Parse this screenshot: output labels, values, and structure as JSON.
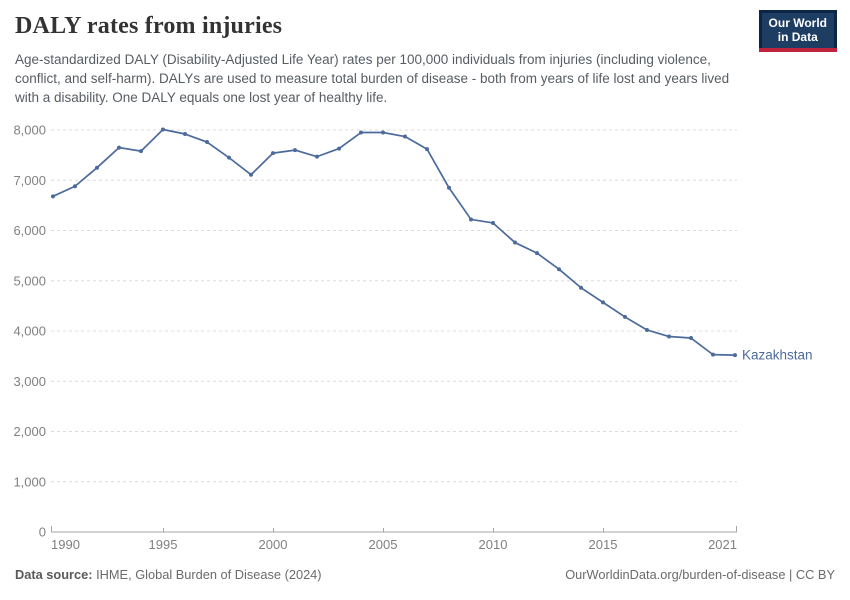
{
  "header": {
    "title": "DALY rates from injuries",
    "subtitle": "Age-standardized DALY (Disability-Adjusted Life Year) rates per 100,000 individuals from injuries (including violence, conflict, and self-harm). DALYs are used to measure total burden of disease - both from years of life lost and years lived with a disability. One DALY equals one lost year of healthy life.",
    "logo": {
      "line1": "Our World",
      "line2": "in Data"
    }
  },
  "chart_data": {
    "type": "line",
    "title": "DALY rates from injuries",
    "x": [
      1990,
      1991,
      1992,
      1993,
      1994,
      1995,
      1996,
      1997,
      1998,
      1999,
      2000,
      2001,
      2002,
      2003,
      2004,
      2005,
      2006,
      2007,
      2008,
      2009,
      2010,
      2011,
      2012,
      2013,
      2014,
      2015,
      2016,
      2017,
      2018,
      2019,
      2020,
      2021
    ],
    "series": [
      {
        "name": "Kazakhstan",
        "color": "#4c6a9c",
        "values": [
          6680,
          6880,
          7250,
          7650,
          7580,
          8010,
          7920,
          7760,
          7450,
          7110,
          7540,
          7600,
          7470,
          7630,
          7950,
          7950,
          7870,
          7620,
          6850,
          6220,
          6150,
          5760,
          5550,
          5230,
          4860,
          4570,
          4280,
          4020,
          3890,
          3860,
          3530,
          3520
        ]
      }
    ],
    "xlabel": "",
    "ylabel": "",
    "xlim": [
      1990,
      2021
    ],
    "ylim": [
      0,
      8000
    ],
    "x_ticks": [
      1990,
      1995,
      2000,
      2005,
      2010,
      2015,
      2021
    ],
    "y_ticks": [
      0,
      1000,
      2000,
      3000,
      4000,
      5000,
      6000,
      7000,
      8000
    ],
    "y_tick_labels": [
      "0",
      "1,000",
      "2,000",
      "3,000",
      "4,000",
      "5,000",
      "6,000",
      "7,000",
      "8,000"
    ],
    "grid": "horizontal-dashed",
    "legend": "end-of-line-label",
    "colors": {
      "line": "#4c6a9c",
      "grid": "#dcdcdc",
      "axis": "#a6a6a6",
      "tick_text": "#818181"
    }
  },
  "footer": {
    "source_label": "Data source:",
    "source": " IHME, Global Burden of Disease (2024)",
    "link": "OurWorldinData.org/burden-of-disease",
    "separator": " | ",
    "license": "CC BY"
  }
}
